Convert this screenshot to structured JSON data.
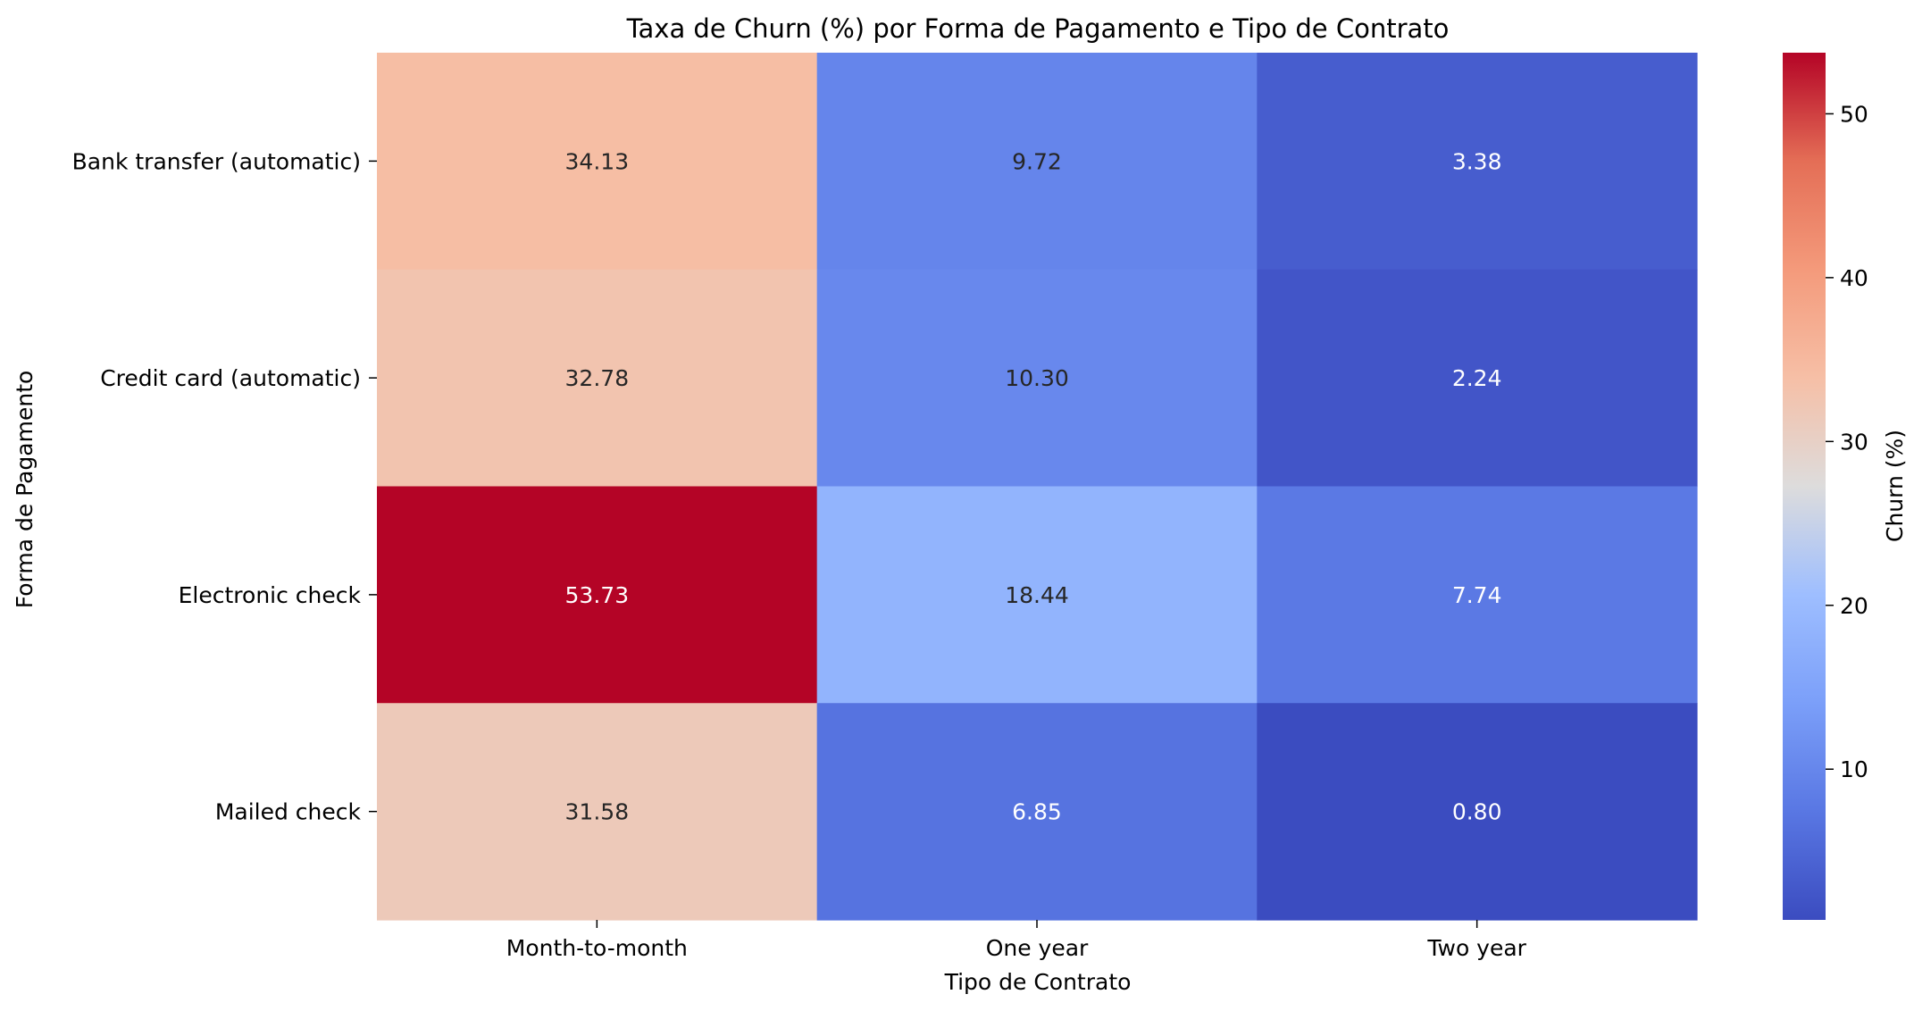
{
  "chart_data": {
    "type": "heatmap",
    "title": "Taxa de Churn (%) por Forma de Pagamento e Tipo de Contrato",
    "xlabel": "Tipo de Contrato",
    "ylabel": "Forma de Pagamento",
    "x_categories": [
      "Month-to-month",
      "One year",
      "Two year"
    ],
    "y_categories": [
      "Bank transfer (automatic)",
      "Credit card (automatic)",
      "Electronic check",
      "Mailed check"
    ],
    "values": [
      [
        34.13,
        9.72,
        3.38
      ],
      [
        32.78,
        10.3,
        2.24
      ],
      [
        53.73,
        18.44,
        7.74
      ],
      [
        31.58,
        6.85,
        0.8
      ]
    ],
    "value_labels": [
      [
        "34.13",
        "9.72",
        "3.38"
      ],
      [
        "32.78",
        "10.30",
        "2.24"
      ],
      [
        "53.73",
        "18.44",
        "7.74"
      ],
      [
        "31.58",
        "6.85",
        "0.80"
      ]
    ],
    "colormap": "coolwarm",
    "colorbar": {
      "label": "Churn (%)",
      "min": 0.8,
      "max": 53.73,
      "ticks": [
        10,
        20,
        30,
        40,
        50
      ],
      "tick_labels": [
        "10",
        "20",
        "30",
        "40",
        "50"
      ]
    }
  }
}
